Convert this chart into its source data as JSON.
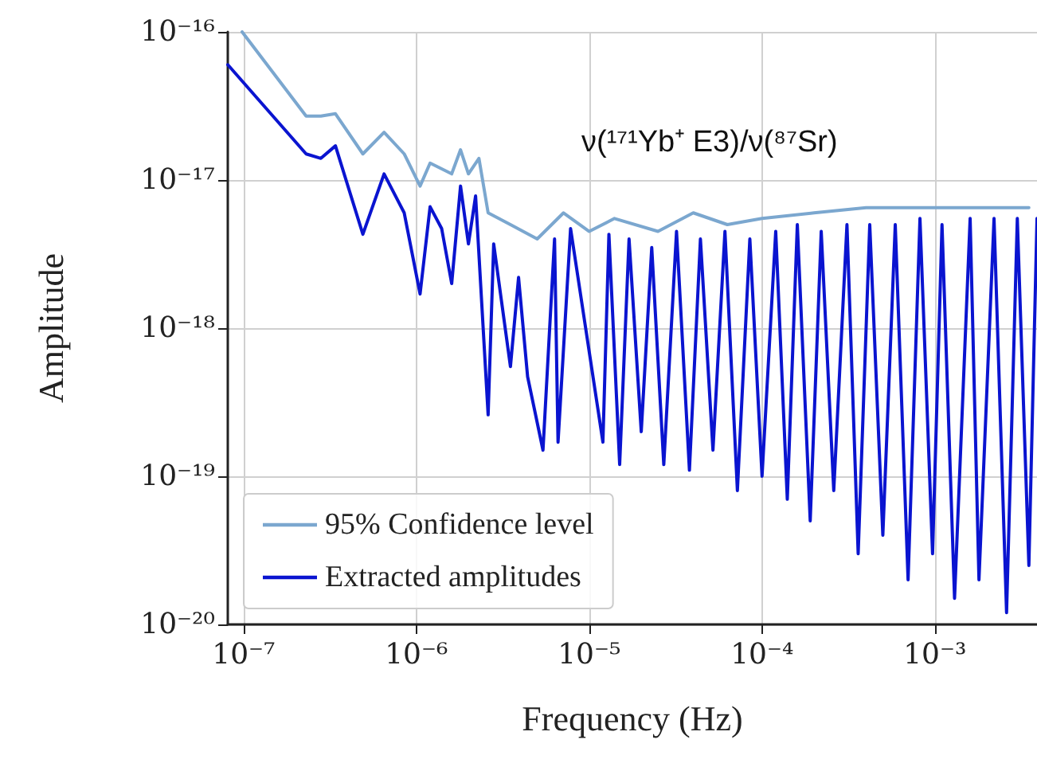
{
  "chart_data": {
    "type": "line",
    "xlabel": "Frequency (Hz)",
    "ylabel": "Amplitude",
    "log": "xy",
    "grid": true,
    "legend": "bottom left",
    "line_style": "solid",
    "marker": "none",
    "annotations": [
      "ν(¹⁷¹Yb⁺ E3)/ν(⁸⁷Sr)"
    ],
    "xlim": [
      8.1e-08,
      0.0039
    ],
    "xticks": [
      {
        "value": 1e-07,
        "label": "10⁻⁷"
      },
      {
        "value": 1e-06,
        "label": "10⁻⁶"
      },
      {
        "value": 1e-05,
        "label": "10⁻⁵"
      },
      {
        "value": 0.0001,
        "label": "10⁻⁴"
      },
      {
        "value": 0.001,
        "label": "10⁻³"
      }
    ],
    "ylim": [
      1e-20,
      1e-16
    ],
    "yticks": [
      {
        "value": 1e-20,
        "label": "10⁻²⁰"
      },
      {
        "value": 1e-19,
        "label": "10⁻¹⁹"
      },
      {
        "value": 1e-18,
        "label": "10⁻¹⁸"
      },
      {
        "value": 1e-17,
        "label": "10⁻¹⁷"
      },
      {
        "value": 1e-16,
        "label": "10⁻¹⁶"
      }
    ],
    "series": [
      {
        "name": "95% Confidence level",
        "color": "#7ba7cf",
        "x": [
          9.8e-08,
          2.3e-07,
          2.8e-07,
          3.4e-07,
          4.9e-07,
          6.5e-07,
          8.5e-07,
          1.05e-06,
          1.2e-06,
          1.6e-06,
          1.8e-06,
          2e-06,
          2.3e-06,
          2.6e-06,
          3.5e-06,
          5e-06,
          7.1e-06,
          1e-05,
          1.4e-05,
          2.5e-05,
          4e-05,
          6.3e-05,
          0.0001,
          0.0002,
          0.0004,
          0.0008,
          0.0016,
          0.0035
        ],
        "values": [
          1e-16,
          2.7e-17,
          2.7e-17,
          2.8e-17,
          1.5e-17,
          2.1e-17,
          1.5e-17,
          9.1e-18,
          1.3e-17,
          1.1e-17,
          1.6e-17,
          1.1e-17,
          1.4e-17,
          6e-18,
          5e-18,
          4e-18,
          6e-18,
          4.5e-18,
          5.5e-18,
          4.5e-18,
          6e-18,
          5e-18,
          5.5e-18,
          6e-18,
          6.5e-18,
          6.5e-18,
          6.5e-18,
          6.5e-18
        ]
      },
      {
        "name": "Extracted amplitudes",
        "color": "#0a14d0",
        "x": [
          8.1e-08,
          2.3e-07,
          2.8e-07,
          3.4e-07,
          4.9e-07,
          6.5e-07,
          8.5e-07,
          1.05e-06,
          1.2e-06,
          1.4e-06,
          1.6e-06,
          1.8e-06,
          2e-06,
          2.2e-06,
          2.6e-06,
          2.8e-06,
          3.5e-06,
          3.9e-06,
          4.4e-06,
          5.4e-06,
          6.3e-06,
          6.6e-06,
          7.8e-06,
          1.2e-05,
          1.3e-05,
          1.5e-05,
          1.7e-05,
          2e-05,
          2.3e-05,
          2.7e-05,
          3.2e-05,
          3.8e-05,
          4.4e-05,
          5.2e-05,
          6.1e-05,
          7.2e-05,
          8.5e-05,
          0.0001,
          0.00012,
          0.00014,
          0.00016,
          0.00019,
          0.00022,
          0.00026,
          0.00031,
          0.00036,
          0.00042,
          0.0005,
          0.00059,
          0.0007,
          0.00082,
          0.00097,
          0.0011,
          0.0013,
          0.0016,
          0.0018,
          0.0022,
          0.0026,
          0.003,
          0.0035,
          0.0039
        ],
        "values": [
          6e-17,
          1.5e-17,
          1.4e-17,
          1.7e-17,
          4.3e-18,
          1.1e-17,
          6e-18,
          1.7e-18,
          6.6e-18,
          4.7e-18,
          2e-18,
          9.1e-18,
          3.7e-18,
          7.8e-18,
          2.6e-19,
          3.7e-18,
          5.5e-19,
          2.2e-18,
          4.7e-19,
          1.5e-19,
          4e-18,
          1.7e-19,
          4.7e-18,
          1.7e-19,
          4.3e-18,
          1.2e-19,
          4e-18,
          2e-19,
          3.5e-18,
          1.2e-19,
          4.5e-18,
          1.1e-19,
          4e-18,
          1.5e-19,
          4.5e-18,
          8e-20,
          4e-18,
          1e-19,
          4.5e-18,
          7e-20,
          5e-18,
          5e-20,
          4.5e-18,
          8e-20,
          5e-18,
          3e-20,
          5e-18,
          4e-20,
          5e-18,
          2e-20,
          5.5e-18,
          3e-20,
          5e-18,
          1.5e-20,
          5.5e-18,
          2e-20,
          5.5e-18,
          1.2e-20,
          5.5e-18,
          2.5e-20,
          5.5e-18
        ]
      }
    ]
  }
}
